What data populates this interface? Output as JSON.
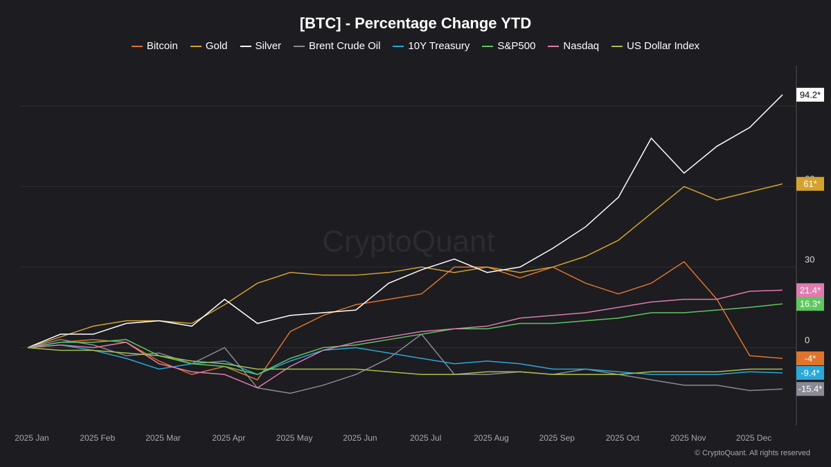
{
  "chart_data": {
    "type": "line",
    "title": "[BTC] - Percentage Change YTD",
    "watermark": "CryptoQuant",
    "footer": "© CryptoQuant. All rights reserved",
    "categories": [
      "2025 Jan",
      null,
      "2025 Feb",
      null,
      "2025 Mar",
      null,
      "2025 Apr",
      null,
      "2025 May",
      null,
      "2025 Jun",
      null,
      "2025 Jul",
      null,
      "2025 Aug",
      null,
      "2025 Sep",
      null,
      "2025 Oct",
      null,
      "2025 Nov",
      null,
      "2025 Dec",
      null
    ],
    "ylim": [
      -29,
      105
    ],
    "yticks": [
      0,
      30,
      60,
      90
    ],
    "grid": true,
    "series": [
      {
        "name": "Bitcoin",
        "color": "#e0742a",
        "values": [
          0,
          2,
          3,
          2,
          -5,
          -10,
          -7,
          -12,
          6,
          12,
          16,
          18,
          20,
          30,
          30,
          26,
          30,
          24,
          20,
          24,
          32,
          18,
          -3,
          -4
        ],
        "value_labels": [
          null,
          null,
          null,
          null,
          null,
          null,
          null,
          null,
          null,
          null,
          null,
          null,
          null,
          null,
          null,
          null,
          null,
          null,
          null,
          null,
          null,
          null,
          null,
          "-4*"
        ]
      },
      {
        "name": "Gold",
        "color": "#d4a22f",
        "values": [
          0,
          4,
          8,
          10,
          10,
          9,
          16,
          24,
          28,
          27,
          27,
          28,
          30,
          28,
          30,
          28,
          30,
          34,
          40,
          50,
          60,
          55,
          58,
          61
        ],
        "value_labels": [
          null,
          null,
          null,
          null,
          null,
          null,
          null,
          null,
          null,
          null,
          null,
          null,
          null,
          null,
          null,
          null,
          null,
          null,
          null,
          null,
          null,
          null,
          null,
          "61*"
        ]
      },
      {
        "name": "Silver",
        "color": "#ffffff",
        "values": [
          0,
          5,
          5,
          9,
          10,
          8,
          18,
          9,
          12,
          13,
          14,
          24,
          29,
          33,
          28,
          30,
          37,
          45,
          56,
          78,
          65,
          75,
          82,
          94.2
        ],
        "value_labels": [
          null,
          null,
          null,
          null,
          null,
          null,
          null,
          null,
          null,
          null,
          null,
          null,
          null,
          null,
          null,
          null,
          null,
          null,
          null,
          null,
          null,
          null,
          null,
          "94.2*"
        ]
      },
      {
        "name": "Brent Crude Oil",
        "color": "#8a8a96",
        "values": [
          0,
          3,
          1,
          -3,
          -2,
          -6,
          0,
          -15,
          -17,
          -14,
          -10,
          -4,
          5,
          -10,
          -10,
          -9,
          -10,
          -8,
          -10,
          -12,
          -14,
          -14,
          -16,
          -15.4
        ],
        "value_labels": [
          null,
          null,
          null,
          null,
          null,
          null,
          null,
          null,
          null,
          null,
          null,
          null,
          null,
          null,
          null,
          null,
          null,
          null,
          null,
          null,
          null,
          null,
          null,
          "-15.4*"
        ]
      },
      {
        "name": "10Y Treasury",
        "color": "#2aa8d8",
        "values": [
          0,
          1,
          -1,
          -4,
          -8,
          -6,
          -5,
          -10,
          -5,
          -1,
          0,
          -2,
          -4,
          -6,
          -5,
          -6,
          -8,
          -8,
          -9,
          -10,
          -10,
          -10,
          -9,
          -9.4
        ],
        "value_labels": [
          null,
          null,
          null,
          null,
          null,
          null,
          null,
          null,
          null,
          null,
          null,
          null,
          null,
          null,
          null,
          null,
          null,
          null,
          null,
          null,
          null,
          null,
          null,
          "-9.4*"
        ]
      },
      {
        "name": "S&P500",
        "color": "#5fc75f",
        "values": [
          0,
          2,
          2,
          3,
          -3,
          -6,
          -7,
          -10,
          -4,
          0,
          1,
          3,
          5,
          7,
          7,
          9,
          9,
          10,
          11,
          13,
          13,
          14,
          15,
          16.3
        ],
        "value_labels": [
          null,
          null,
          null,
          null,
          null,
          null,
          null,
          null,
          null,
          null,
          null,
          null,
          null,
          null,
          null,
          null,
          null,
          null,
          null,
          null,
          null,
          null,
          null,
          "16.3*"
        ]
      },
      {
        "name": "Nasdaq",
        "color": "#e07bb0",
        "values": [
          0,
          1,
          0,
          2,
          -6,
          -9,
          -10,
          -15,
          -7,
          -1,
          2,
          4,
          6,
          7,
          8,
          11,
          12,
          13,
          15,
          17,
          18,
          18,
          21,
          21.4
        ],
        "value_labels": [
          null,
          null,
          null,
          null,
          null,
          null,
          null,
          null,
          null,
          null,
          null,
          null,
          null,
          null,
          null,
          null,
          null,
          null,
          null,
          null,
          null,
          null,
          null,
          "21.4*"
        ]
      },
      {
        "name": "US Dollar Index",
        "color": "#a5c24a",
        "values": [
          0,
          -1,
          -1,
          -2,
          -3,
          -5,
          -6,
          -8,
          -8,
          -8,
          -8,
          -9,
          -10,
          -10,
          -9,
          -9,
          -10,
          -10,
          -10,
          -9,
          -9,
          -9,
          -8,
          -8
        ]
      }
    ]
  }
}
